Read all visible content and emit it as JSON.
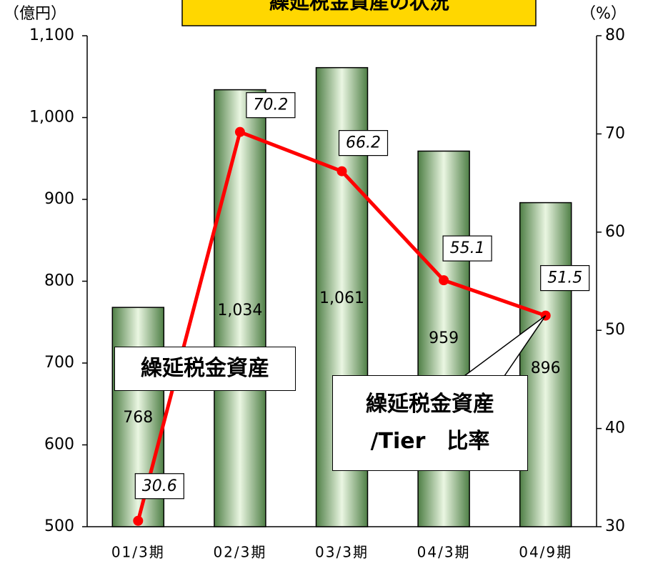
{
  "chart_data": {
    "type": "bar",
    "title": "繰延税金資産の状況",
    "ylabel": "（億円）",
    "y2label": "（%）",
    "categories": [
      "01/3期",
      "02/3期",
      "03/3期",
      "04/3期",
      "04/9期"
    ],
    "series": [
      {
        "name": "繰延税金資産",
        "type": "bar",
        "color": "#6f9a62",
        "values": [
          768,
          1034,
          1061,
          959,
          896
        ],
        "value_labels": [
          "768",
          "1,034",
          "1,061",
          "959",
          "896"
        ]
      },
      {
        "name": "繰延税金資産\n/Tier　比率",
        "type": "line",
        "axis": "y2",
        "color": "#ff0000",
        "values": [
          30.6,
          70.2,
          66.2,
          55.1,
          51.5
        ]
      }
    ],
    "ylim": [
      500,
      1100
    ],
    "yticks": [
      500,
      600,
      700,
      800,
      900,
      {
        "value": 1000,
        "label": "1,000"
      },
      {
        "value": 1100,
        "label": "1,100"
      }
    ],
    "y2lim": [
      30,
      80
    ],
    "y2ticks": [
      30,
      40,
      50,
      60,
      70,
      80
    ]
  }
}
